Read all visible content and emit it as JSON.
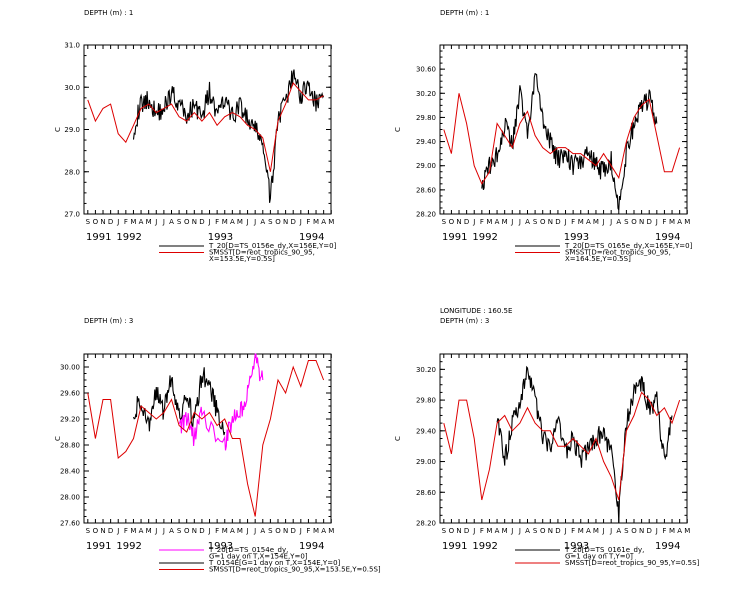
{
  "months": [
    "S",
    "O",
    "N",
    "D",
    "J",
    "F",
    "M",
    "A",
    "M",
    "J",
    "J",
    "A",
    "S",
    "O",
    "N",
    "D",
    "J",
    "F",
    "M",
    "A",
    "M",
    "J",
    "J",
    "A",
    "S",
    "O",
    "N",
    "D",
    "J",
    "F",
    "M",
    "A",
    "M"
  ],
  "years": [
    "1991",
    "1992",
    "1993",
    "1994"
  ],
  "colors": {
    "black": "#000000",
    "red": "#dd0000",
    "magenta": "#ff00ff"
  },
  "chart_data": [
    {
      "type": "line",
      "header": [
        "DEPTH (m) : 1"
      ],
      "ylabel": "C",
      "ylim": [
        27.0,
        31.0
      ],
      "yticks": [
        "27.0",
        "28.0",
        "29.0",
        "30.0",
        "31.0"
      ],
      "xlim": [
        "1991-09-01",
        "1994-05-15"
      ],
      "series": [
        {
          "name": "T_20[D=TS_0156e_dy,X=156E,Y=0]",
          "color": "black",
          "x": [
            "1992-03",
            "1992-04",
            "1992-05",
            "1992-06",
            "1992-07",
            "1992-08",
            "1992-09",
            "1992-10",
            "1992-11",
            "1992-12",
            "1993-01",
            "1993-02",
            "1993-03",
            "1993-04",
            "1993-05",
            "1993-06",
            "1993-07",
            "1993-08",
            "1993-09",
            "1993-10",
            "1993-11",
            "1993-12",
            "1994-01",
            "1994-02",
            "1994-03",
            "1994-04"
          ],
          "y": [
            29.0,
            29.6,
            29.7,
            29.4,
            29.5,
            29.9,
            29.6,
            29.3,
            29.6,
            29.3,
            29.9,
            29.3,
            29.7,
            29.3,
            29.6,
            29.2,
            29.0,
            28.7,
            27.3,
            29.3,
            29.6,
            30.3,
            29.8,
            30.1,
            29.6,
            29.8
          ]
        },
        {
          "name": "SMSST[D=reot_tropics_90_95,X=153.5E,Y=0.5S]",
          "color": "red",
          "x": [
            "1991-09",
            "1991-10",
            "1991-11",
            "1991-12",
            "1992-01",
            "1992-02",
            "1992-03",
            "1992-04",
            "1992-05",
            "1992-06",
            "1992-07",
            "1992-08",
            "1992-09",
            "1992-10",
            "1992-11",
            "1992-12",
            "1993-01",
            "1993-02",
            "1993-03",
            "1993-04",
            "1993-05",
            "1993-06",
            "1993-07",
            "1993-08",
            "1993-09",
            "1993-10",
            "1993-11",
            "1993-12",
            "1994-01",
            "1994-02",
            "1994-03",
            "1994-04"
          ],
          "y": [
            29.7,
            29.2,
            29.5,
            29.6,
            28.9,
            28.7,
            29.1,
            29.5,
            29.6,
            29.4,
            29.5,
            29.6,
            29.3,
            29.2,
            29.4,
            29.2,
            29.4,
            29.1,
            29.3,
            29.4,
            29.3,
            29.1,
            29.0,
            28.8,
            28.0,
            29.2,
            29.6,
            30.1,
            29.9,
            29.7,
            29.7,
            29.8
          ]
        }
      ],
      "legend": [
        "T_20[D=TS_0156e_dy,X=156E,Y=0]",
        "SMSST[D=reot_tropics_90_95,",
        "X=153.5E,Y=0.5S]"
      ]
    },
    {
      "type": "line",
      "header": [
        "DEPTH (m) : 1"
      ],
      "ylabel": "C",
      "ylim": [
        28.2,
        31.0
      ],
      "yticks": [
        "28.20",
        "28.60",
        "29.00",
        "29.40",
        "29.80",
        "30.20",
        "30.60"
      ],
      "xlim": [
        "1991-09-01",
        "1994-05-15"
      ],
      "series": [
        {
          "name": "T_20[D=TS_0165e_dy,X=165E,Y=0]",
          "color": "black",
          "x": [
            "1992-02",
            "1992-03",
            "1992-04",
            "1992-05",
            "1992-06",
            "1992-07",
            "1992-08",
            "1992-09",
            "1992-10",
            "1992-11",
            "1992-12",
            "1993-01",
            "1993-02",
            "1993-03",
            "1993-04",
            "1993-05",
            "1993-06",
            "1993-07",
            "1993-08",
            "1993-09",
            "1993-10",
            "1993-11",
            "1993-12",
            "1994-01"
          ],
          "y": [
            28.7,
            29.0,
            29.2,
            29.7,
            29.3,
            30.2,
            29.5,
            30.5,
            29.8,
            29.4,
            29.1,
            29.2,
            29.0,
            29.1,
            29.2,
            29.0,
            28.9,
            29.1,
            28.3,
            29.2,
            29.7,
            30.0,
            30.1,
            29.7
          ]
        },
        {
          "name": "SMSST[D=reot_tropics_90_95,X=164.5E,Y=0.5S]",
          "color": "red",
          "x": [
            "1991-09",
            "1991-10",
            "1991-11",
            "1991-12",
            "1992-01",
            "1992-02",
            "1992-03",
            "1992-04",
            "1992-05",
            "1992-06",
            "1992-07",
            "1992-08",
            "1992-09",
            "1992-10",
            "1992-11",
            "1992-12",
            "1993-01",
            "1993-02",
            "1993-03",
            "1993-04",
            "1993-05",
            "1993-06",
            "1993-07",
            "1993-08",
            "1993-09",
            "1993-10",
            "1993-11",
            "1993-12",
            "1994-01",
            "1994-02",
            "1994-03",
            "1994-04"
          ],
          "y": [
            29.6,
            29.2,
            30.2,
            29.7,
            29.0,
            28.7,
            28.9,
            29.7,
            29.5,
            29.3,
            29.7,
            29.9,
            29.5,
            29.3,
            29.2,
            29.3,
            29.3,
            29.2,
            29.2,
            29.1,
            29.0,
            29.2,
            29.0,
            28.8,
            29.4,
            29.8,
            30.0,
            30.1,
            29.5,
            28.9,
            28.9,
            29.3
          ]
        }
      ],
      "legend": [
        "T_20[D=TS_0165e_dy,X=165E,Y=0]",
        "SMSST[D=reot_tropics_90_95,",
        "X=164.5E,Y=0.5S]"
      ]
    },
    {
      "type": "line",
      "header": [
        "DEPTH (m) : 3"
      ],
      "ylabel": "C",
      "ylim": [
        27.6,
        30.2
      ],
      "yticks": [
        "27.60",
        "28.00",
        "28.40",
        "28.80",
        "29.20",
        "29.60",
        "30.00"
      ],
      "xlim": [
        "1991-09-01",
        "1994-05-15"
      ],
      "series": [
        {
          "name": "T_20[D=TS_0154e_dy, G=1 day on T,X=154E,Y=0]",
          "color": "magenta",
          "x": [
            "1992-09",
            "1992-10",
            "1992-11",
            "1992-12",
            "1993-03",
            "1993-04",
            "1993-05",
            "1993-06",
            "1993-07",
            "1993-08"
          ],
          "y": [
            29.1,
            29.2,
            28.9,
            29.3,
            28.8,
            29.2,
            29.3,
            29.6,
            30.1,
            29.8
          ]
        },
        {
          "name": "T_0154E[G=1 day on T,X=154E,Y=0]",
          "color": "black",
          "x": [
            "1992-03",
            "1992-04",
            "1992-05",
            "1992-06",
            "1992-07",
            "1992-08",
            "1992-09",
            "1992-10",
            "1992-11",
            "1992-12",
            "1993-01",
            "1993-02",
            "1993-03"
          ],
          "y": [
            29.3,
            29.5,
            29.1,
            29.6,
            29.3,
            29.9,
            29.2,
            29.6,
            29.1,
            29.9,
            29.7,
            29.3,
            29.0
          ]
        },
        {
          "name": "SMSST[D=reot_tropics_90_95,X=153.5E,Y=0.5S]",
          "color": "red",
          "x": [
            "1991-09",
            "1991-10",
            "1991-11",
            "1991-12",
            "1992-01",
            "1992-02",
            "1992-03",
            "1992-04",
            "1992-05",
            "1992-06",
            "1992-07",
            "1992-08",
            "1992-09",
            "1992-10",
            "1992-11",
            "1992-12",
            "1993-01",
            "1993-02",
            "1993-03",
            "1993-04",
            "1993-05",
            "1993-06",
            "1993-07",
            "1993-08",
            "1993-09",
            "1993-10",
            "1993-11",
            "1993-12",
            "1994-01",
            "1994-02",
            "1994-03",
            "1994-04"
          ],
          "y": [
            29.6,
            28.9,
            29.5,
            29.5,
            28.6,
            28.7,
            28.9,
            29.4,
            29.3,
            29.2,
            29.3,
            29.5,
            29.1,
            29.0,
            29.3,
            29.2,
            29.3,
            29.1,
            29.2,
            28.9,
            28.9,
            28.2,
            27.7,
            28.8,
            29.2,
            29.8,
            29.6,
            30.0,
            29.7,
            30.1,
            30.1,
            29.8
          ]
        }
      ],
      "legend": [
        "T_20[D=TS_0154e_dy,",
        "G=1 day on T,X=154E,Y=0]",
        "T_0154E[G=1 day on T,X=154E,Y=0]",
        "SMSST[D=reot_tropics_90_95,X=153.5E,Y=0.5S]"
      ]
    },
    {
      "type": "line",
      "header": [
        "LONGITUDE : 160.5E",
        "DEPTH (m) : 3"
      ],
      "ylabel": "C",
      "ylim": [
        28.2,
        30.4
      ],
      "yticks": [
        "28.20",
        "28.60",
        "29.00",
        "29.40",
        "29.80",
        "30.20"
      ],
      "xlim": [
        "1991-09-01",
        "1994-05-15"
      ],
      "series": [
        {
          "name": "T_20[D=TS_0161e_dy, G=1 day on T,Y=0]",
          "color": "black",
          "x": [
            "1992-04",
            "1992-05",
            "1992-06",
            "1992-07",
            "1992-08",
            "1992-09",
            "1992-10",
            "1992-11",
            "1992-12",
            "1993-01",
            "1993-02",
            "1993-03",
            "1993-04",
            "1993-05",
            "1993-06",
            "1993-07",
            "1993-08",
            "1993-09",
            "1993-10",
            "1993-11",
            "1993-12",
            "1994-01",
            "1994-02",
            "1994-03"
          ],
          "y": [
            29.6,
            29.0,
            29.5,
            29.7,
            30.2,
            29.8,
            29.3,
            29.2,
            29.5,
            29.1,
            29.3,
            29.0,
            29.2,
            29.3,
            29.4,
            29.1,
            28.3,
            29.5,
            29.9,
            30.0,
            29.7,
            29.8,
            29.0,
            29.6
          ]
        },
        {
          "name": "SMSST[D=reot_tropics_90_95,Y=0.5S]",
          "color": "red",
          "x": [
            "1991-09",
            "1991-10",
            "1991-11",
            "1991-12",
            "1992-01",
            "1992-02",
            "1992-03",
            "1992-04",
            "1992-05",
            "1992-06",
            "1992-07",
            "1992-08",
            "1992-09",
            "1992-10",
            "1992-11",
            "1992-12",
            "1993-01",
            "1993-02",
            "1993-03",
            "1993-04",
            "1993-05",
            "1993-06",
            "1993-07",
            "1993-08",
            "1993-09",
            "1993-10",
            "1993-11",
            "1993-12",
            "1994-01",
            "1994-02",
            "1994-03",
            "1994-04"
          ],
          "y": [
            29.5,
            29.1,
            29.8,
            29.8,
            29.3,
            28.5,
            28.9,
            29.5,
            29.6,
            29.4,
            29.5,
            29.7,
            29.5,
            29.4,
            29.4,
            29.2,
            29.2,
            29.3,
            29.2,
            29.1,
            29.3,
            29.0,
            28.8,
            28.5,
            29.4,
            29.6,
            29.9,
            29.8,
            29.6,
            29.7,
            29.5,
            29.8
          ]
        }
      ],
      "legend": [
        "T_20[D=TS_0161e_dy,",
        "G=1 day on T,Y=0]",
        "SMSST[D=reot_tropics_90_95,Y=0.5S]"
      ]
    }
  ]
}
